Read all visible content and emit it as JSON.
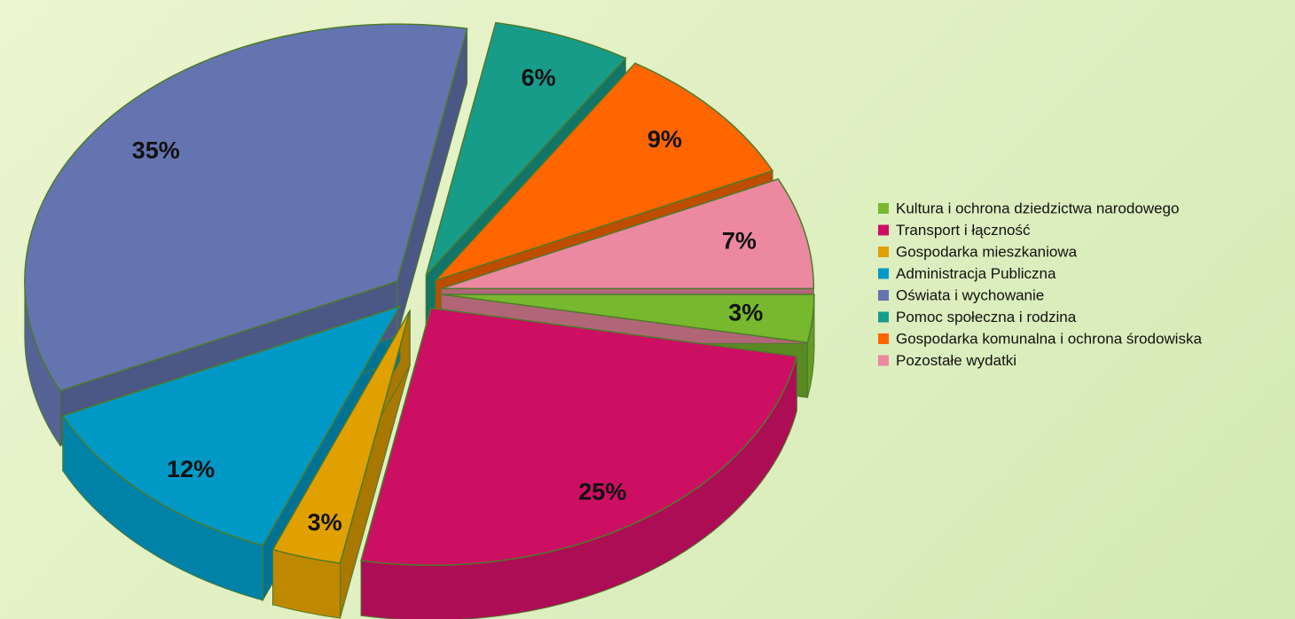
{
  "chart_data": {
    "type": "pie",
    "categories": [
      "Kultura i ochrona dziedzictwa narodowego",
      "Transport i łączność",
      "Gospodarka mieszkaniowa",
      "Administracja Publiczna",
      "Oświata i wychowanie",
      "Pomoc społeczna i rodzina",
      "Gospodarka komunalna i ochrona środowiska",
      "Pozostałe wydatki"
    ],
    "values": [
      3,
      25,
      3,
      12,
      35,
      6,
      9,
      7
    ],
    "value_labels": [
      "3%",
      "25%",
      "3%",
      "12%",
      "35%",
      "6%",
      "9%",
      "7%"
    ],
    "colors": [
      "#77b82e",
      "#cc0f63",
      "#e0a000",
      "#0099c6",
      "#6474b0",
      "#179c8a",
      "#ff6600",
      "#ec88a0"
    ],
    "legend": "right"
  }
}
